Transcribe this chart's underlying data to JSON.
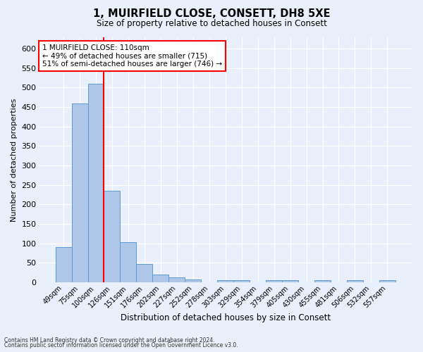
{
  "title": "1, MUIRFIELD CLOSE, CONSETT, DH8 5XE",
  "subtitle": "Size of property relative to detached houses in Consett",
  "xlabel": "Distribution of detached houses by size in Consett",
  "ylabel": "Number of detached properties",
  "footnote1": "Contains HM Land Registry data © Crown copyright and database right 2024.",
  "footnote2": "Contains public sector information licensed under the Open Government Licence v3.0.",
  "bin_labels": [
    "49sqm",
    "75sqm",
    "100sqm",
    "126sqm",
    "151sqm",
    "176sqm",
    "202sqm",
    "227sqm",
    "252sqm",
    "278sqm",
    "303sqm",
    "329sqm",
    "354sqm",
    "379sqm",
    "405sqm",
    "430sqm",
    "455sqm",
    "481sqm",
    "506sqm",
    "532sqm",
    "557sqm"
  ],
  "bar_heights": [
    90,
    460,
    510,
    235,
    104,
    47,
    21,
    13,
    8,
    0,
    6,
    6,
    0,
    5,
    5,
    0,
    5,
    0,
    5,
    0,
    5
  ],
  "bar_color": "#aec6e8",
  "bar_edge_color": "#5b9bd5",
  "red_line_x": 2.5,
  "ylim": [
    0,
    630
  ],
  "yticks": [
    0,
    50,
    100,
    150,
    200,
    250,
    300,
    350,
    400,
    450,
    500,
    550,
    600
  ],
  "annotation_label": "1 MUIRFIELD CLOSE: 110sqm",
  "annotation_line1": "← 49% of detached houses are smaller (715)",
  "annotation_line2": "51% of semi-detached houses are larger (746) →",
  "annotation_box_color": "white",
  "annotation_box_edge": "red",
  "property_line_color": "red",
  "background_color": "#eaf0fb"
}
